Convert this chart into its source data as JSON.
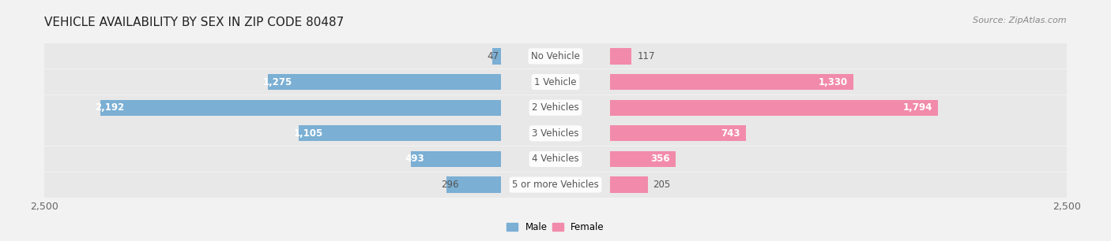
{
  "title": "VEHICLE AVAILABILITY BY SEX IN ZIP CODE 80487",
  "source": "Source: ZipAtlas.com",
  "categories": [
    "No Vehicle",
    "1 Vehicle",
    "2 Vehicles",
    "3 Vehicles",
    "4 Vehicles",
    "5 or more Vehicles"
  ],
  "male_values": [
    47,
    1275,
    2192,
    1105,
    493,
    296
  ],
  "female_values": [
    117,
    1330,
    1794,
    743,
    356,
    205
  ],
  "male_color": "#7bafd4",
  "female_color": "#f28bab",
  "male_label": "Male",
  "female_label": "Female",
  "bg_color": "#f2f2f2",
  "row_bg_color": "#e8e8e8",
  "xlim": 2500,
  "bar_height": 0.62,
  "title_fontsize": 11,
  "label_fontsize": 8.5,
  "tick_fontsize": 9,
  "source_fontsize": 8,
  "value_fontsize": 8.5,
  "inner_value_threshold": 300
}
